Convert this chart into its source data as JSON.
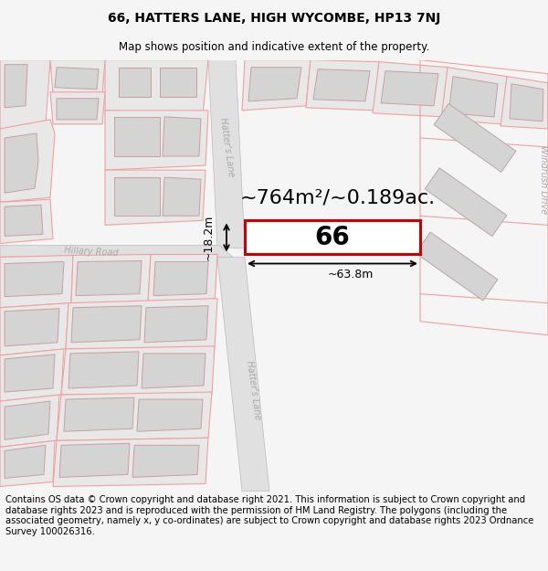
{
  "title_line1": "66, HATTERS LANE, HIGH WYCOMBE, HP13 7NJ",
  "title_line2": "Map shows position and indicative extent of the property.",
  "area_label": "~764m²/~0.189ac.",
  "number_label": "66",
  "width_label": "~63.8m",
  "height_label": "~18.2m",
  "footer_text": "Contains OS data © Crown copyright and database right 2021. This information is subject to Crown copyright and database rights 2023 and is reproduced with the permission of HM Land Registry. The polygons (including the associated geometry, namely x, y co-ordinates) are subject to Crown copyright and database rights 2023 Ordnance Survey 100026316.",
  "bg_color": "#f5f5f5",
  "map_bg": "#ffffff",
  "plot_outline_color": "#cc0000",
  "building_fill": "#d4d4d4",
  "plot_fill": "#e8e8e8",
  "boundary_color": "#f0a0a0",
  "road_fill": "#e8e8e8",
  "road_label_color": "#aaaaaa",
  "text_color": "#000000",
  "footer_color": "#000000",
  "title_fontsize": 10,
  "subtitle_fontsize": 8.5,
  "area_fontsize": 16,
  "number_fontsize": 20,
  "dim_fontsize": 9,
  "footer_fontsize": 7.2,
  "road_label_fontsize": 7
}
